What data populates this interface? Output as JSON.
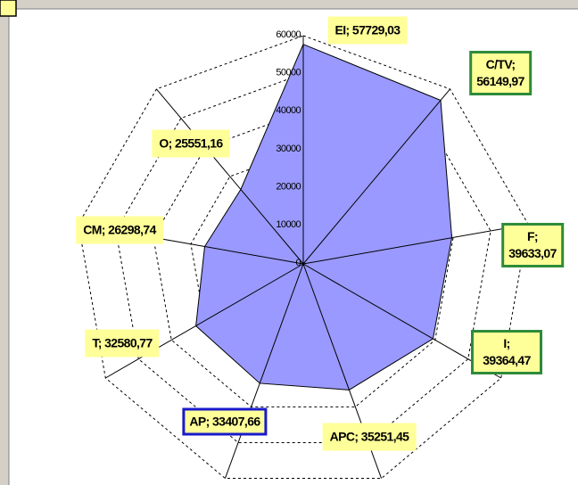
{
  "chart_data": {
    "type": "radar",
    "values": [
      57729.03,
      56149.97,
      39633.07,
      39364.47,
      35251.45,
      33407.66,
      32580.77,
      26298.74,
      25551.16
    ],
    "value_labels": [
      "EI; 57729,03",
      "C/TV;\n56149,97",
      "F; 39633,07",
      "I; 39364,47",
      "APC; 35251,45",
      "AP; 33407,66",
      "T; 32580,77",
      "CM; 26298,74",
      "O; 25551,16"
    ],
    "label_border_colors": [
      null,
      "#2e8b3a",
      "#2e8b3a",
      "#2e8b3a",
      null,
      "#1a1acc",
      null,
      null,
      null
    ],
    "color": "#9999ff",
    "ylim": [
      0,
      60000
    ],
    "yticks": [
      0,
      10000,
      20000,
      30000,
      40000,
      50000,
      60000
    ],
    "grid": true
  }
}
